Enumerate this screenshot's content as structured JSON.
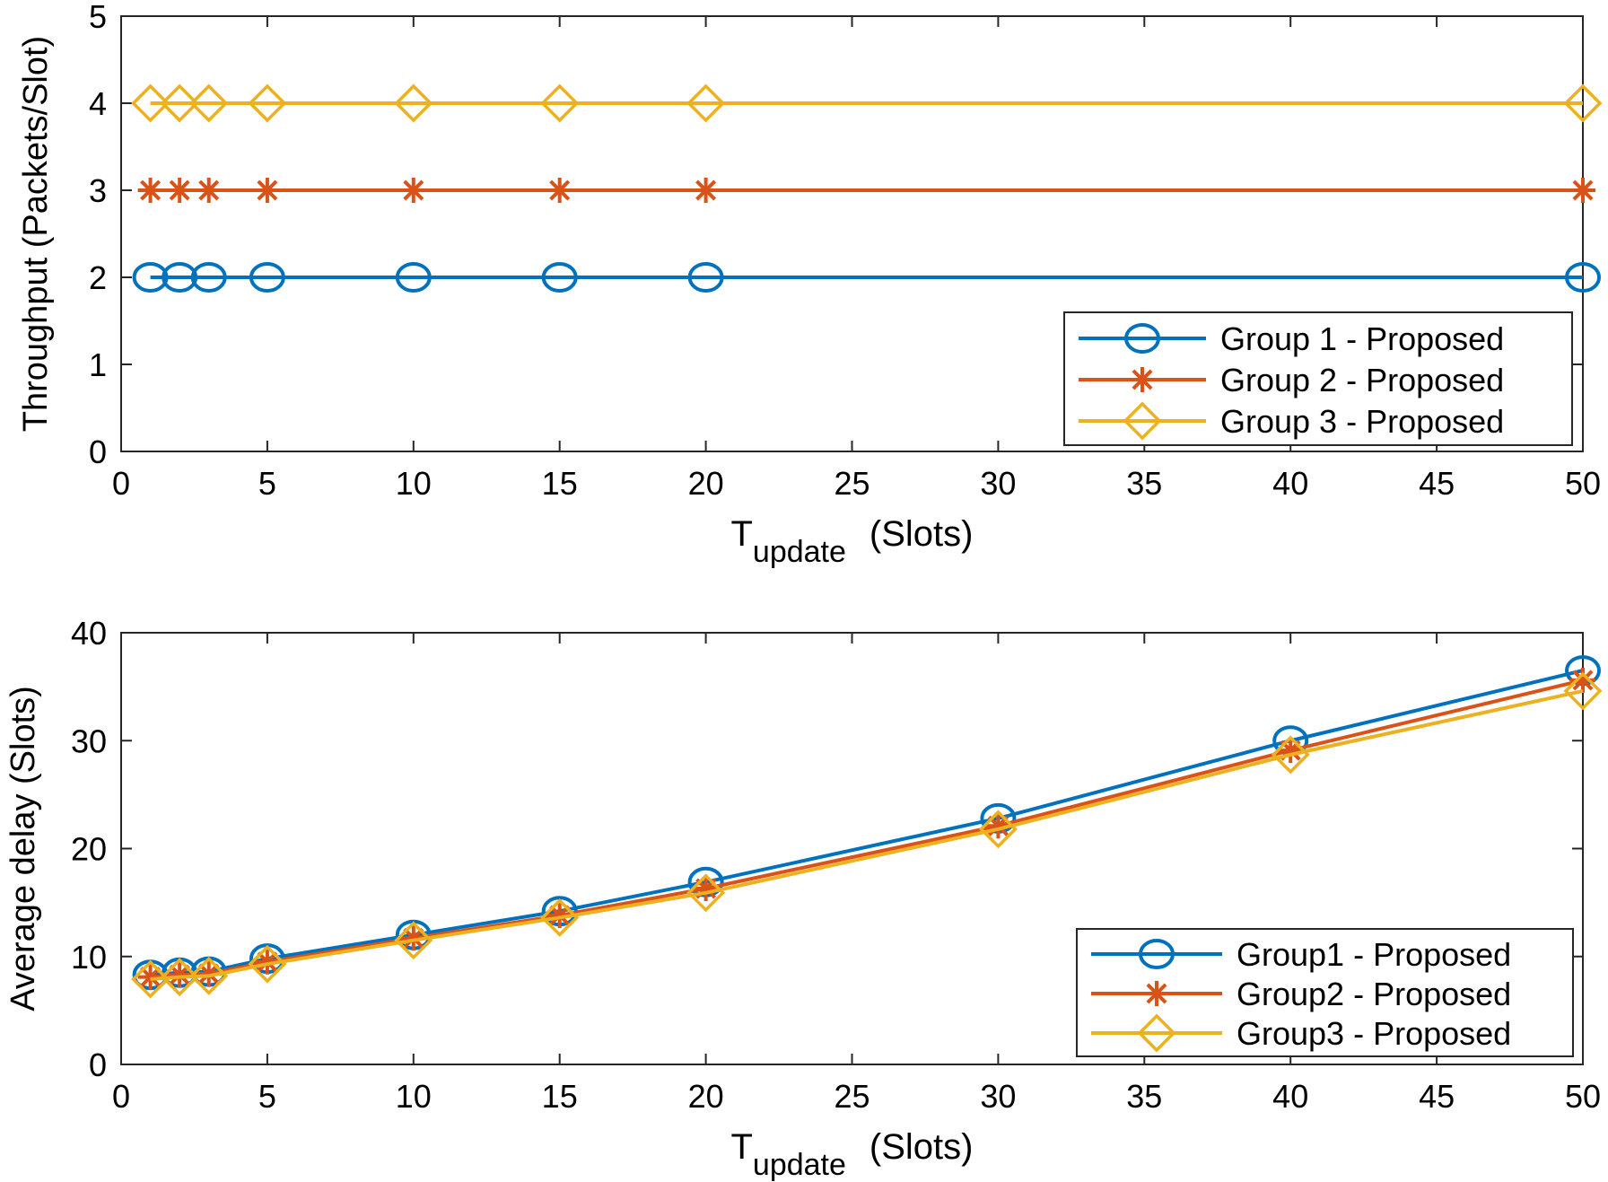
{
  "chart_data": [
    {
      "type": "line",
      "title": "",
      "xlabel": {
        "main": "T",
        "sub": "update",
        "rest": "(Slots)"
      },
      "ylabel": "Throughput (Packets/Slot)",
      "xlim": [
        0,
        50
      ],
      "ylim": [
        0,
        5
      ],
      "xticks": [
        "0",
        "5",
        "10",
        "15",
        "20",
        "25",
        "30",
        "35",
        "40",
        "45",
        "50"
      ],
      "yticks": [
        "0",
        "1",
        "2",
        "3",
        "4",
        "5"
      ],
      "x": [
        1,
        2,
        3,
        5,
        10,
        15,
        20,
        50
      ],
      "grid": false,
      "legend_position": "bottom-right",
      "series": [
        {
          "name": "Group 1 - Proposed",
          "marker": "circle",
          "color": "#0072BD",
          "values": [
            2,
            2,
            2,
            2,
            2,
            2,
            2,
            2
          ]
        },
        {
          "name": "Group 2 - Proposed",
          "marker": "star",
          "color": "#D95319",
          "values": [
            3,
            3,
            3,
            3,
            3,
            3,
            3,
            3
          ]
        },
        {
          "name": "Group 3 - Proposed",
          "marker": "diamond",
          "color": "#EDB120",
          "values": [
            4,
            4,
            4,
            4,
            4,
            4,
            4,
            4
          ]
        }
      ]
    },
    {
      "type": "line",
      "title": "",
      "xlabel": {
        "main": "T",
        "sub": "update",
        "rest": "(Slots)"
      },
      "ylabel": "Average delay (Slots)",
      "xlim": [
        0,
        50
      ],
      "ylim": [
        0,
        40
      ],
      "xticks": [
        "0",
        "5",
        "10",
        "15",
        "20",
        "25",
        "30",
        "35",
        "40",
        "45",
        "50"
      ],
      "yticks": [
        "0",
        "10",
        "20",
        "30",
        "40"
      ],
      "x": [
        1,
        2,
        3,
        5,
        10,
        15,
        20,
        30,
        40,
        50
      ],
      "grid": false,
      "legend_position": "bottom-right",
      "series": [
        {
          "name": "Group1 - Proposed",
          "marker": "circle",
          "color": "#0072BD",
          "values": [
            8.3,
            8.5,
            8.6,
            9.8,
            12.0,
            14.2,
            16.9,
            22.8,
            30.0,
            36.5
          ]
        },
        {
          "name": "Group2 - Proposed",
          "marker": "star",
          "color": "#D95319",
          "values": [
            8.1,
            8.3,
            8.4,
            9.5,
            11.7,
            13.8,
            16.3,
            22.1,
            29.1,
            35.6
          ]
        },
        {
          "name": "Group3 - Proposed",
          "marker": "diamond",
          "color": "#EDB120",
          "values": [
            7.9,
            8.1,
            8.2,
            9.3,
            11.5,
            13.6,
            15.9,
            21.8,
            28.7,
            34.6
          ]
        }
      ]
    }
  ]
}
